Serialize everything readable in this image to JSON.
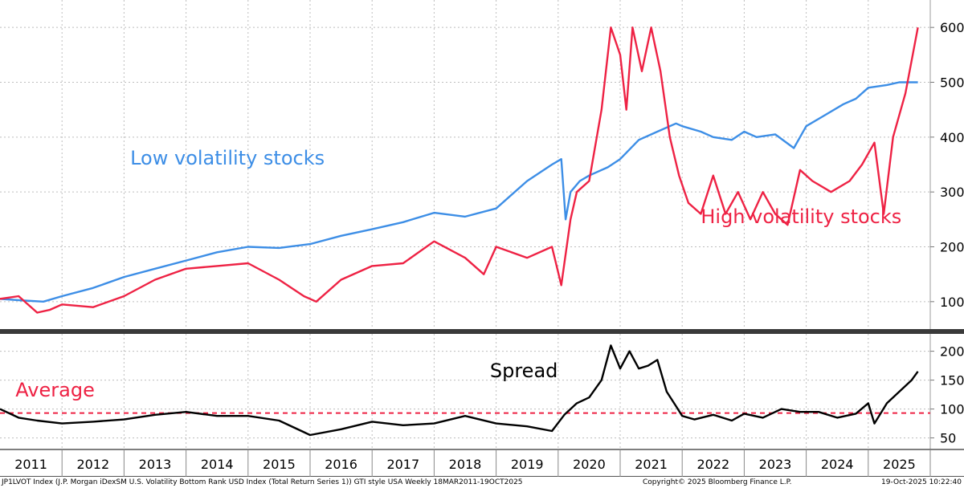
{
  "chart_data": [
    {
      "type": "line",
      "panel": "top",
      "ylim": [
        50,
        650
      ],
      "y_ticks": [
        100,
        200,
        300,
        400,
        500,
        600
      ],
      "x_range": [
        2011.0,
        2026.0
      ],
      "grid": true,
      "annotations": [
        {
          "text": "Low volatility stocks",
          "color": "#3d8ee6",
          "at": [
            2013.1,
            350
          ]
        },
        {
          "text": "High volatility stocks",
          "color": "#ee2244",
          "at": [
            2022.3,
            243
          ]
        }
      ],
      "series": [
        {
          "name": "Low volatility stocks",
          "color": "#3d8ee6",
          "x": [
            2011.0,
            2011.4,
            2011.7,
            2012.0,
            2012.5,
            2013.0,
            2013.5,
            2014.0,
            2014.5,
            2015.0,
            2015.5,
            2016.0,
            2016.5,
            2017.0,
            2017.5,
            2018.0,
            2018.5,
            2019.0,
            2019.5,
            2019.9,
            2020.05,
            2020.12,
            2020.2,
            2020.35,
            2020.5,
            2020.8,
            2021.0,
            2021.3,
            2021.6,
            2021.9,
            2022.0,
            2022.3,
            2022.5,
            2022.8,
            2023.0,
            2023.2,
            2023.5,
            2023.8,
            2024.0,
            2024.3,
            2024.6,
            2024.8,
            2025.0,
            2025.3,
            2025.5,
            2025.8
          ],
          "values": [
            105,
            102,
            100,
            110,
            125,
            145,
            160,
            175,
            190,
            200,
            198,
            205,
            220,
            232,
            245,
            262,
            255,
            270,
            320,
            350,
            360,
            250,
            300,
            320,
            330,
            345,
            360,
            395,
            410,
            425,
            420,
            410,
            400,
            395,
            410,
            400,
            405,
            380,
            420,
            440,
            460,
            470,
            490,
            495,
            500,
            500
          ]
        },
        {
          "name": "High volatility stocks",
          "color": "#ee2244",
          "x": [
            2011.0,
            2011.3,
            2011.6,
            2011.8,
            2012.0,
            2012.5,
            2013.0,
            2013.5,
            2014.0,
            2014.5,
            2015.0,
            2015.5,
            2015.9,
            2016.1,
            2016.5,
            2017.0,
            2017.5,
            2018.0,
            2018.5,
            2018.8,
            2019.0,
            2019.5,
            2019.9,
            2020.05,
            2020.2,
            2020.3,
            2020.5,
            2020.7,
            2020.85,
            2021.0,
            2021.1,
            2021.2,
            2021.35,
            2021.5,
            2021.65,
            2021.8,
            2021.95,
            2022.1,
            2022.3,
            2022.5,
            2022.7,
            2022.9,
            2023.1,
            2023.3,
            2023.5,
            2023.7,
            2023.9,
            2024.1,
            2024.4,
            2024.7,
            2024.9,
            2025.1,
            2025.25,
            2025.4,
            2025.6,
            2025.8
          ],
          "values": [
            105,
            110,
            80,
            85,
            95,
            90,
            110,
            140,
            160,
            165,
            170,
            140,
            110,
            100,
            140,
            165,
            170,
            210,
            180,
            150,
            200,
            180,
            200,
            130,
            250,
            300,
            320,
            450,
            600,
            550,
            450,
            600,
            520,
            600,
            520,
            400,
            330,
            280,
            260,
            330,
            260,
            300,
            250,
            300,
            260,
            240,
            340,
            320,
            300,
            320,
            350,
            390,
            260,
            400,
            480,
            600
          ]
        }
      ]
    },
    {
      "type": "line",
      "panel": "bottom",
      "ylim": [
        30,
        230
      ],
      "y_ticks": [
        50,
        100,
        150,
        200
      ],
      "x_range": [
        2011.0,
        2026.0
      ],
      "grid": true,
      "annotations": [
        {
          "text": "Spread",
          "color": "#000000",
          "at": [
            2018.9,
            155
          ]
        },
        {
          "text": "Average",
          "color": "#ee2244",
          "at": [
            2011.25,
            122
          ]
        }
      ],
      "average": {
        "name": "Average",
        "value": 93,
        "color": "#ee2244",
        "style": "dashed"
      },
      "series": [
        {
          "name": "Spread",
          "color": "#000000",
          "x": [
            2011.0,
            2011.3,
            2011.6,
            2012.0,
            2012.5,
            2013.0,
            2013.5,
            2014.0,
            2014.5,
            2015.0,
            2015.5,
            2016.0,
            2016.5,
            2017.0,
            2017.5,
            2018.0,
            2018.5,
            2019.0,
            2019.5,
            2019.9,
            2020.1,
            2020.3,
            2020.5,
            2020.7,
            2020.85,
            2021.0,
            2021.15,
            2021.3,
            2021.45,
            2021.6,
            2021.75,
            2021.9,
            2022.0,
            2022.2,
            2022.5,
            2022.8,
            2023.0,
            2023.3,
            2023.6,
            2023.9,
            2024.2,
            2024.5,
            2024.8,
            2025.0,
            2025.1,
            2025.3,
            2025.5,
            2025.7,
            2025.8
          ],
          "values": [
            100,
            85,
            80,
            75,
            78,
            82,
            90,
            95,
            88,
            88,
            80,
            55,
            65,
            78,
            72,
            75,
            88,
            75,
            70,
            62,
            90,
            110,
            120,
            150,
            210,
            170,
            200,
            170,
            175,
            185,
            130,
            105,
            88,
            82,
            90,
            80,
            92,
            85,
            100,
            95,
            95,
            85,
            92,
            110,
            75,
            110,
            130,
            150,
            165
          ]
        }
      ]
    }
  ],
  "x_axis": {
    "labels": [
      "2011",
      "2012",
      "2013",
      "2014",
      "2015",
      "2016",
      "2017",
      "2018",
      "2019",
      "2020",
      "2021",
      "2022",
      "2023",
      "2024",
      "2025"
    ]
  },
  "footer": {
    "left": "JP1LVOT Index (J.P. Morgan iDexSM U.S. Volatility Bottom Rank USD Index (Total Return Series 1)) GTI style USA Weekly 18MAR2011-19OCT2025",
    "center": "Copyright© 2025 Bloomberg Finance L.P.",
    "right": "19-Oct-2025 10:22:40"
  }
}
